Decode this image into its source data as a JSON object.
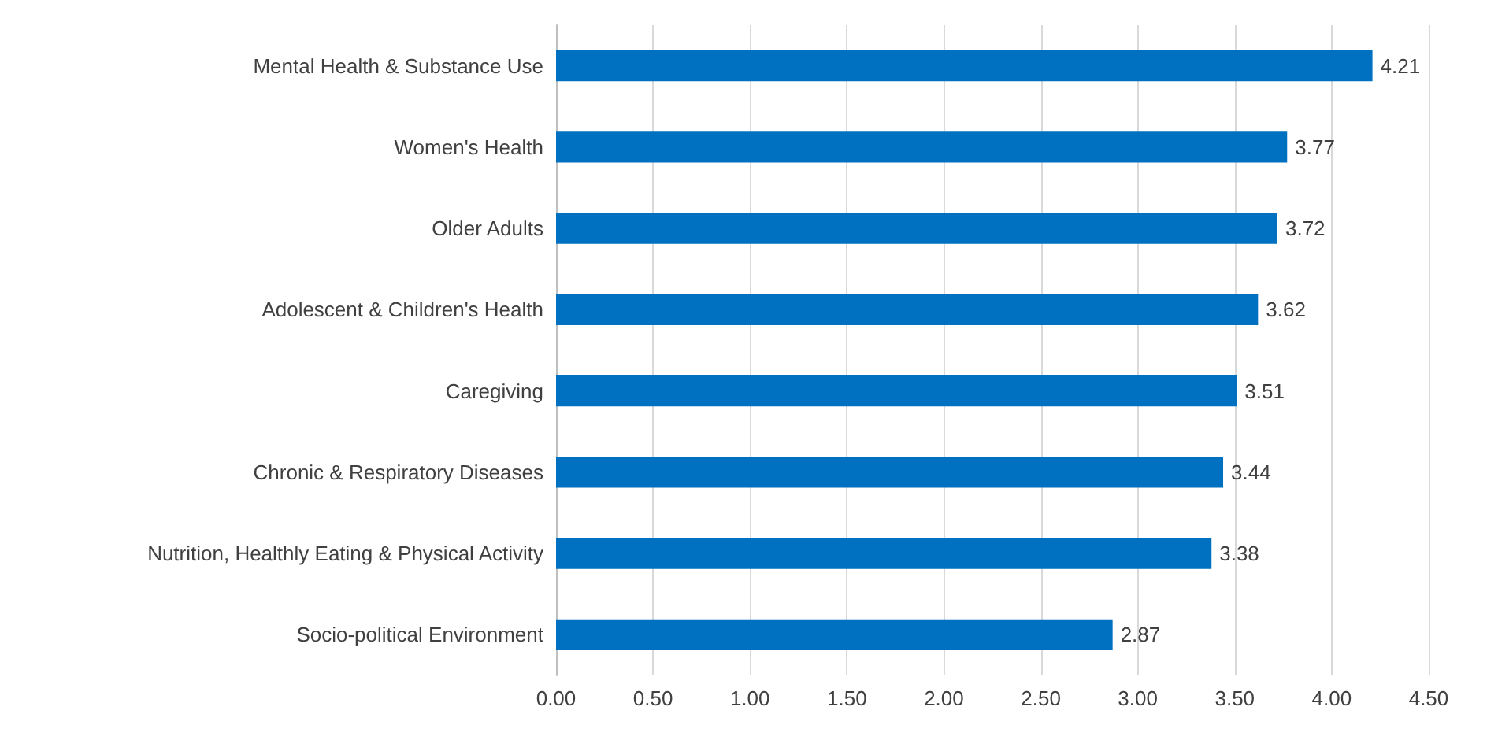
{
  "chart_data": {
    "type": "bar",
    "orientation": "horizontal",
    "categories": [
      "Mental Health & Substance Use",
      "Women's Health",
      "Older Adults",
      "Adolescent & Children's Health",
      "Caregiving",
      "Chronic & Respiratory Diseases",
      "Nutrition, Healthly Eating & Physical Activity",
      "Socio-political Environment"
    ],
    "values": [
      4.21,
      3.77,
      3.72,
      3.62,
      3.51,
      3.44,
      3.38,
      2.87
    ],
    "color": "#0070c0",
    "xlim": [
      0,
      4.5
    ],
    "xticks": [
      {
        "value": 0,
        "label": "0.00"
      },
      {
        "value": 0.5,
        "label": "0.50"
      },
      {
        "value": 1,
        "label": "1.00"
      },
      {
        "value": 1.5,
        "label": "1.50"
      },
      {
        "value": 2,
        "label": "2.00"
      },
      {
        "value": 2.5,
        "label": "2.50"
      },
      {
        "value": 3,
        "label": "3.00"
      },
      {
        "value": 3.5,
        "label": "3.50"
      },
      {
        "value": 4,
        "label": "4.00"
      },
      {
        "value": 4.5,
        "label": "4.50"
      }
    ],
    "grid": "x",
    "data_labels": true
  }
}
